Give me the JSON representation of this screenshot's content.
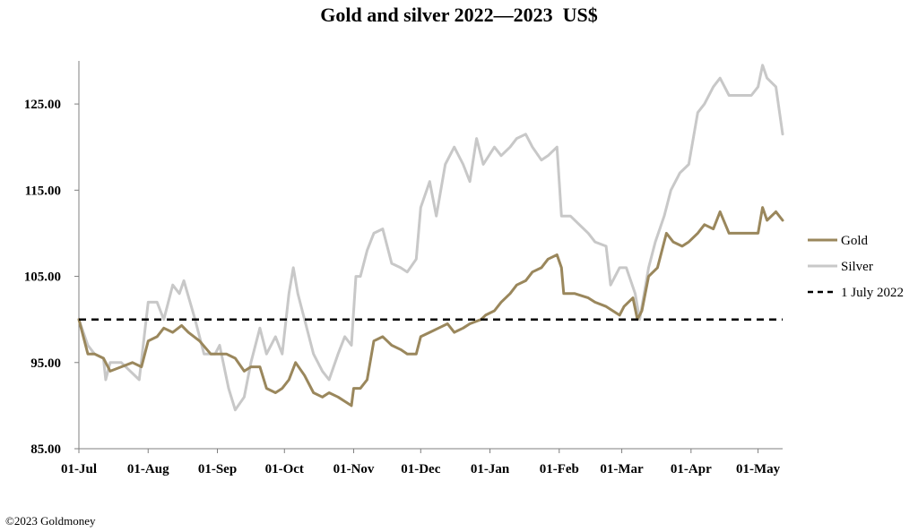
{
  "chart_data": {
    "type": "line",
    "title": "Gold and silver 2022—2023  US$",
    "xlabel": "",
    "ylabel": "",
    "ylim": [
      85,
      130
    ],
    "yticks": [
      85,
      95,
      105,
      115,
      125
    ],
    "ytick_labels": [
      "85.00",
      "95.00",
      "105.00",
      "115.00",
      "125.00"
    ],
    "x_domain": [
      "2022-07-01",
      "2023-05-12"
    ],
    "xticks": [
      "2022-07-01",
      "2022-08-01",
      "2022-09-01",
      "2022-10-01",
      "2022-11-01",
      "2022-12-01",
      "2023-01-01",
      "2023-02-01",
      "2023-03-01",
      "2023-04-01",
      "2023-05-01"
    ],
    "xtick_labels": [
      "01-Jul",
      "01-Aug",
      "01-Sep",
      "01-Oct",
      "01-Nov",
      "01-Dec",
      "01-Jan",
      "01-Feb",
      "01-Mar",
      "01-Apr",
      "01-May"
    ],
    "grid": false,
    "legend_position": "right",
    "series": [
      {
        "name": "Gold",
        "color": "#9a875c",
        "points": [
          [
            "2022-07-01",
            100
          ],
          [
            "2022-07-05",
            96
          ],
          [
            "2022-07-08",
            96
          ],
          [
            "2022-07-12",
            95.5
          ],
          [
            "2022-07-15",
            94
          ],
          [
            "2022-07-20",
            94.5
          ],
          [
            "2022-07-25",
            95
          ],
          [
            "2022-07-29",
            94.5
          ],
          [
            "2022-08-01",
            97.5
          ],
          [
            "2022-08-05",
            98
          ],
          [
            "2022-08-08",
            99
          ],
          [
            "2022-08-12",
            98.5
          ],
          [
            "2022-08-16",
            99.3
          ],
          [
            "2022-08-19",
            98.5
          ],
          [
            "2022-08-24",
            97.5
          ],
          [
            "2022-08-29",
            96
          ],
          [
            "2022-09-01",
            96
          ],
          [
            "2022-09-05",
            96
          ],
          [
            "2022-09-09",
            95.5
          ],
          [
            "2022-09-13",
            94
          ],
          [
            "2022-09-16",
            94.5
          ],
          [
            "2022-09-20",
            94.5
          ],
          [
            "2022-09-23",
            92
          ],
          [
            "2022-09-27",
            91.5
          ],
          [
            "2022-09-30",
            92
          ],
          [
            "2022-10-03",
            93
          ],
          [
            "2022-10-06",
            95
          ],
          [
            "2022-10-10",
            93.5
          ],
          [
            "2022-10-14",
            91.5
          ],
          [
            "2022-10-18",
            91
          ],
          [
            "2022-10-21",
            91.5
          ],
          [
            "2022-10-25",
            91
          ],
          [
            "2022-10-28",
            90.5
          ],
          [
            "2022-10-31",
            90
          ],
          [
            "2022-11-01",
            92
          ],
          [
            "2022-11-04",
            92
          ],
          [
            "2022-11-07",
            93
          ],
          [
            "2022-11-10",
            97.5
          ],
          [
            "2022-11-14",
            98
          ],
          [
            "2022-11-18",
            97
          ],
          [
            "2022-11-22",
            96.5
          ],
          [
            "2022-11-25",
            96
          ],
          [
            "2022-11-29",
            96
          ],
          [
            "2022-12-01",
            98
          ],
          [
            "2022-12-05",
            98.5
          ],
          [
            "2022-12-09",
            99
          ],
          [
            "2022-12-13",
            99.5
          ],
          [
            "2022-12-16",
            98.5
          ],
          [
            "2022-12-20",
            99
          ],
          [
            "2022-12-23",
            99.5
          ],
          [
            "2022-12-28",
            100
          ],
          [
            "2022-12-30",
            100.5
          ],
          [
            "2023-01-03",
            101
          ],
          [
            "2023-01-06",
            102
          ],
          [
            "2023-01-10",
            103
          ],
          [
            "2023-01-13",
            104
          ],
          [
            "2023-01-17",
            104.5
          ],
          [
            "2023-01-20",
            105.5
          ],
          [
            "2023-01-24",
            106
          ],
          [
            "2023-01-27",
            107
          ],
          [
            "2023-01-31",
            107.5
          ],
          [
            "2023-02-02",
            106
          ],
          [
            "2023-02-03",
            103
          ],
          [
            "2023-02-08",
            103
          ],
          [
            "2023-02-14",
            102.5
          ],
          [
            "2023-02-17",
            102
          ],
          [
            "2023-02-22",
            101.5
          ],
          [
            "2023-02-28",
            100.5
          ],
          [
            "2023-03-02",
            101.5
          ],
          [
            "2023-03-06",
            102.5
          ],
          [
            "2023-03-08",
            100
          ],
          [
            "2023-03-10",
            101
          ],
          [
            "2023-03-13",
            105
          ],
          [
            "2023-03-17",
            106
          ],
          [
            "2023-03-21",
            110
          ],
          [
            "2023-03-24",
            109
          ],
          [
            "2023-03-28",
            108.5
          ],
          [
            "2023-03-31",
            109
          ],
          [
            "2023-04-04",
            110
          ],
          [
            "2023-04-07",
            111
          ],
          [
            "2023-04-11",
            110.5
          ],
          [
            "2023-04-14",
            112.5
          ],
          [
            "2023-04-18",
            110
          ],
          [
            "2023-04-21",
            110
          ],
          [
            "2023-04-25",
            110
          ],
          [
            "2023-04-28",
            110
          ],
          [
            "2023-05-01",
            110
          ],
          [
            "2023-05-03",
            113
          ],
          [
            "2023-05-05",
            111.5
          ],
          [
            "2023-05-09",
            112.5
          ],
          [
            "2023-05-12",
            111.5
          ]
        ]
      },
      {
        "name": "Silver",
        "color": "#c8c8c8",
        "points": [
          [
            "2022-07-01",
            100
          ],
          [
            "2022-07-05",
            97
          ],
          [
            "2022-07-08",
            96
          ],
          [
            "2022-07-12",
            95.5
          ],
          [
            "2022-07-13",
            93
          ],
          [
            "2022-07-15",
            95
          ],
          [
            "2022-07-20",
            95
          ],
          [
            "2022-07-24",
            94
          ],
          [
            "2022-07-28",
            93
          ],
          [
            "2022-08-01",
            102
          ],
          [
            "2022-08-05",
            102
          ],
          [
            "2022-08-08",
            100
          ],
          [
            "2022-08-12",
            104
          ],
          [
            "2022-08-15",
            103
          ],
          [
            "2022-08-17",
            104.5
          ],
          [
            "2022-08-22",
            100
          ],
          [
            "2022-08-26",
            96
          ],
          [
            "2022-08-31",
            96
          ],
          [
            "2022-09-02",
            97
          ],
          [
            "2022-09-06",
            92
          ],
          [
            "2022-09-09",
            89.5
          ],
          [
            "2022-09-13",
            91
          ],
          [
            "2022-09-16",
            95
          ],
          [
            "2022-09-20",
            99
          ],
          [
            "2022-09-23",
            96
          ],
          [
            "2022-09-27",
            98
          ],
          [
            "2022-09-30",
            96
          ],
          [
            "2022-10-03",
            103
          ],
          [
            "2022-10-05",
            106
          ],
          [
            "2022-10-07",
            103
          ],
          [
            "2022-10-11",
            99
          ],
          [
            "2022-10-14",
            96
          ],
          [
            "2022-10-18",
            94
          ],
          [
            "2022-10-21",
            93
          ],
          [
            "2022-10-25",
            96
          ],
          [
            "2022-10-28",
            98
          ],
          [
            "2022-10-31",
            97
          ],
          [
            "2022-11-02",
            105
          ],
          [
            "2022-11-04",
            105
          ],
          [
            "2022-11-07",
            108
          ],
          [
            "2022-11-10",
            110
          ],
          [
            "2022-11-14",
            110.5
          ],
          [
            "2022-11-18",
            106.5
          ],
          [
            "2022-11-22",
            106
          ],
          [
            "2022-11-25",
            105.5
          ],
          [
            "2022-11-29",
            107
          ],
          [
            "2022-12-01",
            113
          ],
          [
            "2022-12-05",
            116
          ],
          [
            "2022-12-08",
            112
          ],
          [
            "2022-12-12",
            118
          ],
          [
            "2022-12-16",
            120
          ],
          [
            "2022-12-20",
            118
          ],
          [
            "2022-12-23",
            116
          ],
          [
            "2022-12-26",
            121
          ],
          [
            "2022-12-29",
            118
          ],
          [
            "2023-01-03",
            120
          ],
          [
            "2023-01-06",
            119
          ],
          [
            "2023-01-10",
            120
          ],
          [
            "2023-01-13",
            121
          ],
          [
            "2023-01-17",
            121.5
          ],
          [
            "2023-01-20",
            120
          ],
          [
            "2023-01-24",
            118.5
          ],
          [
            "2023-01-27",
            119
          ],
          [
            "2023-01-31",
            120
          ],
          [
            "2023-02-02",
            112
          ],
          [
            "2023-02-06",
            112
          ],
          [
            "2023-02-10",
            111
          ],
          [
            "2023-02-14",
            110
          ],
          [
            "2023-02-17",
            109
          ],
          [
            "2023-02-22",
            108.5
          ],
          [
            "2023-02-24",
            104
          ],
          [
            "2023-02-28",
            106
          ],
          [
            "2023-03-03",
            106
          ],
          [
            "2023-03-07",
            103
          ],
          [
            "2023-03-09",
            100
          ],
          [
            "2023-03-13",
            106
          ],
          [
            "2023-03-16",
            109
          ],
          [
            "2023-03-20",
            112
          ],
          [
            "2023-03-23",
            115
          ],
          [
            "2023-03-27",
            117
          ],
          [
            "2023-03-31",
            118
          ],
          [
            "2023-04-04",
            124
          ],
          [
            "2023-04-07",
            125
          ],
          [
            "2023-04-11",
            127
          ],
          [
            "2023-04-14",
            128
          ],
          [
            "2023-04-18",
            126
          ],
          [
            "2023-04-21",
            126
          ],
          [
            "2023-04-25",
            126
          ],
          [
            "2023-04-28",
            126
          ],
          [
            "2023-05-01",
            127
          ],
          [
            "2023-05-03",
            129.5
          ],
          [
            "2023-05-05",
            128
          ],
          [
            "2023-05-09",
            127
          ],
          [
            "2023-05-12",
            121.5
          ]
        ]
      },
      {
        "name": "1 July 2022",
        "color": "#000000",
        "dashed": true,
        "points": [
          [
            "2022-07-01",
            100
          ],
          [
            "2023-05-12",
            100
          ]
        ]
      }
    ],
    "copyright": "©2023 Goldmoney"
  }
}
